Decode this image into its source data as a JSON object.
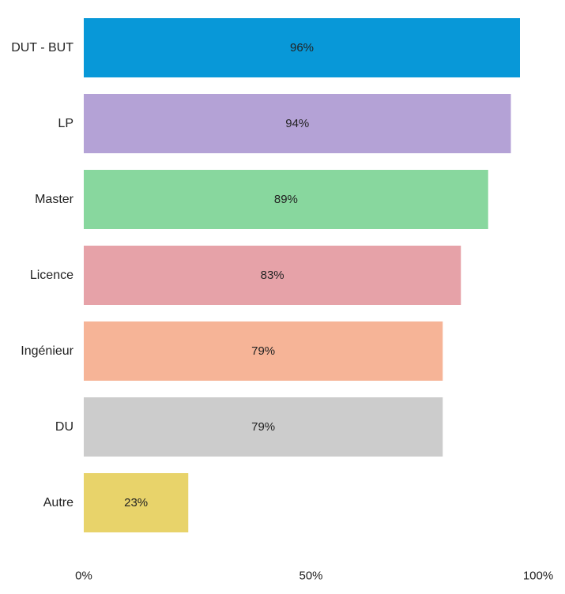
{
  "chart_data": {
    "type": "bar",
    "orientation": "horizontal",
    "categories": [
      "DUT - BUT",
      "LP",
      "Master",
      "Licence",
      "Ingénieur",
      "DU",
      "Autre"
    ],
    "values": [
      96,
      94,
      89,
      83,
      79,
      79,
      23
    ],
    "value_labels": [
      "96%",
      "94%",
      "89%",
      "83%",
      "79%",
      "79%",
      "23%"
    ],
    "colors": [
      "#0898d8",
      "#b4a2d6",
      "#88d79e",
      "#e6a2a8",
      "#f6b497",
      "#cccccc",
      "#e8d36a"
    ],
    "xlim": [
      0,
      100
    ],
    "x_ticks": [
      0,
      50,
      100
    ],
    "x_tick_labels": [
      "0%",
      "50%",
      "100%"
    ],
    "title": "",
    "xlabel": "",
    "ylabel": "",
    "grid": false,
    "legend": "none"
  }
}
